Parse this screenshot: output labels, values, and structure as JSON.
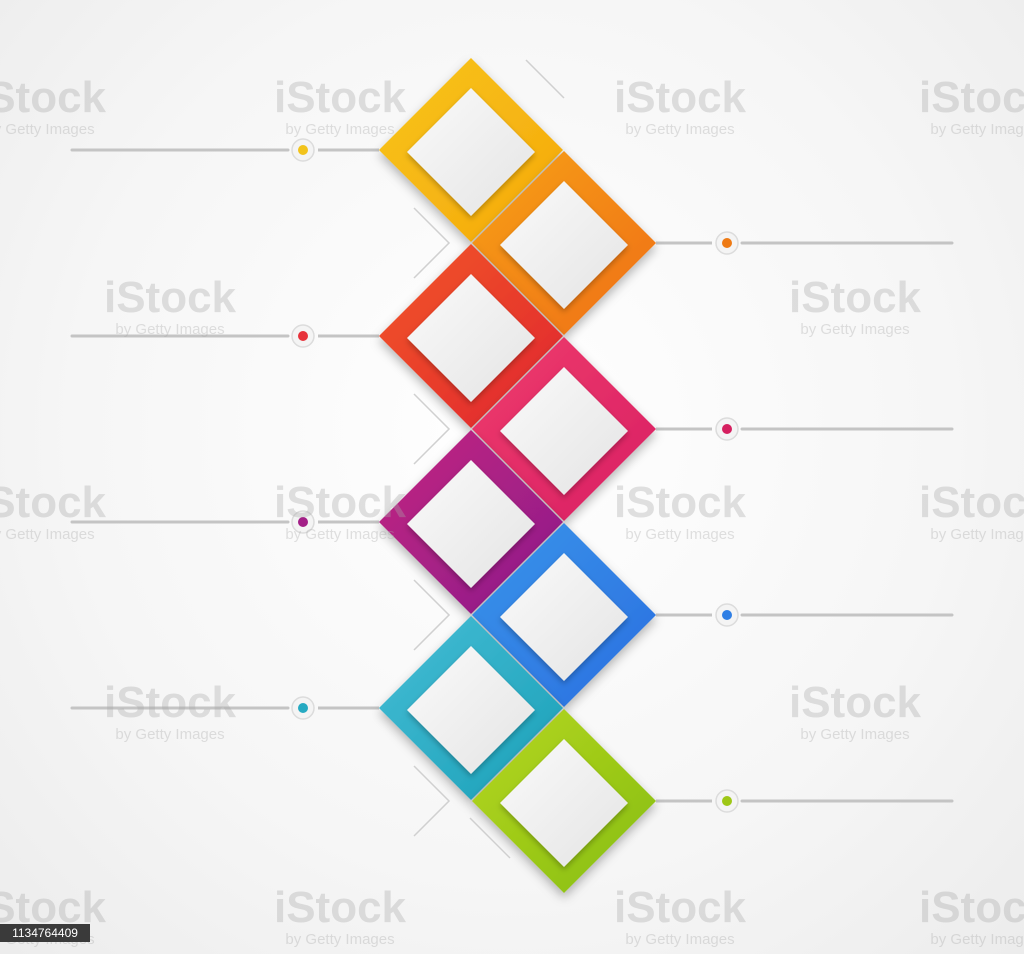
{
  "diagram": {
    "type": "diamond-step-infographic",
    "steps": [
      {
        "id": 1,
        "side": "left",
        "color_from": "#f7c51a",
        "color_to": "#f6a80c",
        "dot": "#f2c31b"
      },
      {
        "id": 2,
        "side": "right",
        "color_from": "#f7a21a",
        "color_to": "#ef6d12",
        "dot": "#ee7a14"
      },
      {
        "id": 3,
        "side": "left",
        "color_from": "#f2582a",
        "color_to": "#e0242e",
        "dot": "#e7323a"
      },
      {
        "id": 4,
        "side": "right",
        "color_from": "#ef3c6c",
        "color_to": "#d81f63",
        "dot": "#d51f5f"
      },
      {
        "id": 5,
        "side": "left",
        "color_from": "#c42580",
        "color_to": "#8b1c8b",
        "dot": "#a31f87"
      },
      {
        "id": 6,
        "side": "right",
        "color_from": "#3a95ea",
        "color_to": "#2a6ee0",
        "dot": "#2f7fe5"
      },
      {
        "id": 7,
        "side": "left",
        "color_from": "#45bdd5",
        "color_to": "#1ba0b8",
        "dot": "#26aac2"
      },
      {
        "id": 8,
        "side": "right",
        "color_from": "#b6d71e",
        "color_to": "#86bd13",
        "dot": "#9ec716"
      }
    ]
  },
  "watermark": {
    "brand": "iStock",
    "byline": "by Getty Images",
    "image_id": "1134764409"
  }
}
